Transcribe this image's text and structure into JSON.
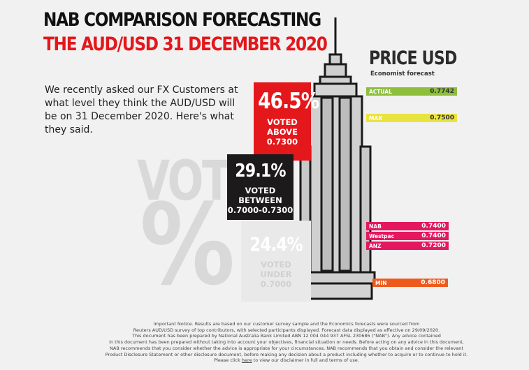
{
  "title": {
    "line1": "NAB COMPARISON FORECASTING",
    "line2": "THE AUD/USD 31 DECEMBER 2020"
  },
  "intro": "We recently asked our FX Customers at what level they think the AUD/USD will be on 31 December 2020. Here's what they said.",
  "vote": {
    "word": "VOTE",
    "symbol": "%"
  },
  "results": {
    "above": {
      "pct": "46.5%",
      "l1": "VOTED",
      "l2": "ABOVE",
      "l3": "0.7300",
      "color": "#e4171b"
    },
    "between": {
      "pct": "29.1%",
      "l1": "VOTED",
      "l2": "BETWEEN",
      "l3": "0.7000-0.7300",
      "color": "#1c1a1b"
    },
    "under": {
      "pct": "24.4%",
      "l1": "VOTED",
      "l2": "UNDER",
      "l3": "0.7000",
      "color": "#e9e9e9"
    }
  },
  "price": {
    "heading": "PRICE USD",
    "subheading": "Economist forecast",
    "rows": [
      {
        "label": "ACTUAL",
        "value": "0.7742",
        "color": "#8dbf3b"
      },
      {
        "label": "MAX",
        "value": "0.7500",
        "color": "#e9e341"
      },
      {
        "label": "NAB",
        "value": "0.7400",
        "color": "#e4175f"
      },
      {
        "label": "Westpac",
        "value": "0.7400",
        "color": "#e4175f"
      },
      {
        "label": "ANZ",
        "value": "0.7200",
        "color": "#e4175f"
      },
      {
        "label": "MIN",
        "value": "0.6800",
        "color": "#ee5a1e"
      }
    ]
  },
  "footer": {
    "l1": "Important Notice. Results are based on our customer survey sample and the Economics forecasts were sourced from",
    "l2": "Reuters AUD/USD survey of top contributors, with selected participants displayed. Forecast data displayed as effective on 29/09/2020.",
    "l3": "This document has been prepared by National Australia Bank Limited ABN 12 004 044 937 AFSL 230686 (\"NAB\"). Any advice contained",
    "l4": "in this document has been prepared without taking into account your objectives, financial situation or needs. Before acting on any advice in this document,",
    "l5": "NAB recommends that you consider whether the advice is appropriate for your circumstances. NAB recommends that you obtain and consider the relevant",
    "l6": "Product Disclosure Statement or other disclosure document, before making any decision about a product including whether to acquire or to continue to hold it.",
    "l7a": "Please click",
    "link": "here",
    "l7b": "to view our disclaimer in full and terms of use."
  }
}
